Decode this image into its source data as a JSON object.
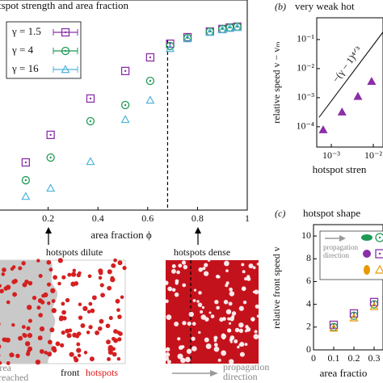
{
  "chart_data": [
    {
      "type": "scatter",
      "title": "tspot strength and area fraction",
      "x_label": "area fraction ϕ",
      "x": [
        0.11,
        0.21,
        0.37,
        0.51,
        0.61,
        0.69,
        0.76,
        0.85,
        0.9,
        0.93,
        0.96
      ],
      "series": [
        {
          "name": "γ = 1.5",
          "color": "#8b2fa8",
          "marker": "square",
          "values": [
            0.227,
            0.358,
            0.531,
            0.662,
            0.727,
            0.792,
            0.823,
            0.85,
            0.862,
            0.869,
            0.873
          ]
        },
        {
          "name": "γ = 4",
          "color": "#1e9a55",
          "marker": "circle",
          "values": [
            0.142,
            0.25,
            0.423,
            0.5,
            0.615,
            0.781,
            0.819,
            0.85,
            0.862,
            0.869,
            0.873
          ]
        },
        {
          "name": "γ = 16",
          "color": "#4fb3d9",
          "marker": "triangle",
          "values": [
            0.065,
            0.104,
            0.231,
            0.431,
            0.523,
            0.769,
            0.815,
            0.846,
            0.858,
            0.865,
            0.869
          ]
        }
      ],
      "xlim": [
        0,
        1
      ],
      "ylim": [
        0,
        1
      ],
      "xticks": [
        0.2,
        0.4,
        0.6,
        0.8,
        1
      ],
      "vline": 0.68,
      "legend": "upper left"
    },
    {
      "type": "scatter",
      "panel": "(b)",
      "title": "very weak hot",
      "x_label": "hotspot stren",
      "y_label": "relative speed v − vₘ",
      "log": true,
      "x": [
        0.00064,
        0.0018,
        0.0043,
        0.0091
      ],
      "series": [
        {
          "color": "#8b2fa8",
          "marker": "triangle-filled",
          "values": [
            7.8e-05,
            0.00032,
            0.0011,
            0.0036
          ]
        }
      ],
      "xlim": [
        0.00045,
        0.017
      ],
      "ylim": [
        2e-05,
        0.56
      ],
      "xticks": [
        {
          "value": 0.001,
          "label": "10⁻³"
        },
        {
          "value": 0.01,
          "label": "10⁻²"
        }
      ],
      "yticks": [
        {
          "value": 0.0001,
          "label": "10⁻⁴"
        },
        {
          "value": 0.001,
          "label": "10⁻³"
        },
        {
          "value": 0.01,
          "label": "10⁻²"
        },
        {
          "value": 0.1,
          "label": "10⁻¹"
        }
      ],
      "reference_line": {
        "x": [
          0.00051,
          0.017
        ],
        "y": [
          0.00021,
          0.18
        ],
        "label": "−(γ − 1)⁴ᐟ³"
      }
    },
    {
      "type": "scatter",
      "panel": "(c)",
      "title": "hotspot shape",
      "x_label": "area fractio",
      "y_label": "relative front speed v",
      "x": [
        0.1,
        0.2,
        0.3
      ],
      "series": [
        {
          "color": "#1e9a55",
          "marker": "circle",
          "values": [
            2.0,
            3.0,
            4.0
          ]
        },
        {
          "color": "#8b2fa8",
          "marker": "square",
          "values": [
            2.2,
            3.2,
            4.2
          ]
        },
        {
          "color": "#e69a00",
          "marker": "triangle",
          "values": [
            1.9,
            2.8,
            3.8
          ]
        }
      ],
      "xlim": [
        0,
        0.344
      ],
      "ylim": [
        0,
        11
      ],
      "xticks": [
        0,
        0.1,
        0.2,
        0.3
      ],
      "yticks": [
        0,
        2,
        4,
        6,
        8,
        10
      ],
      "legend_text": [
        "propagation",
        "direction"
      ]
    }
  ],
  "annotations": {
    "dilute": "hotspots dilute",
    "dense": "hotspots dense",
    "area": "area",
    "reached": "reached",
    "front": "front",
    "hotspots": "hotspots",
    "propagation": "propagation",
    "direction": "direction"
  }
}
